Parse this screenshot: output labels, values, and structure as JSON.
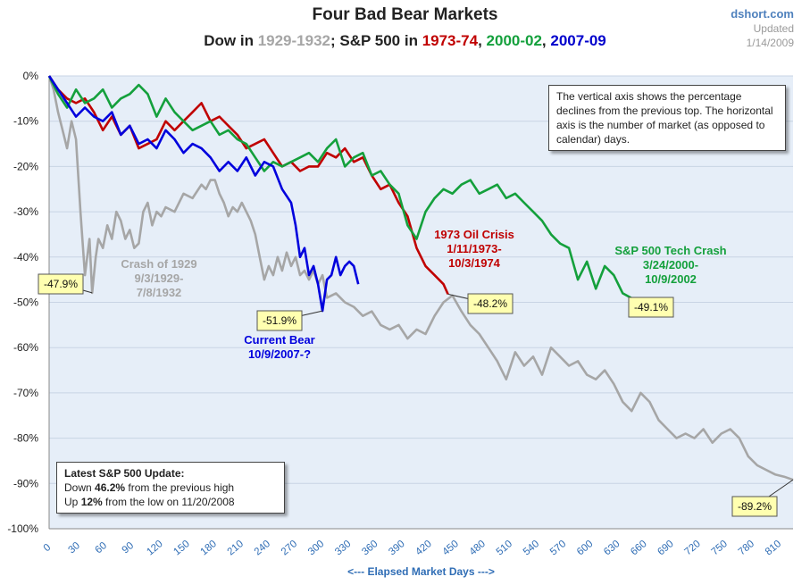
{
  "header": {
    "title": "Four Bad Bear Markets",
    "subtitle_prefix": "Dow in ",
    "subtitle_dow_years": "1929-1932",
    "subtitle_mid": "; S&P 500 in ",
    "subtitle_1973": "1973-74",
    "subtitle_sep1": ", ",
    "subtitle_2000": "2000-02",
    "subtitle_sep2": ", ",
    "subtitle_2007": "2007-09"
  },
  "brand": {
    "site": "dshort.com",
    "updated_label": "Updated",
    "date": "1/14/2009"
  },
  "info_box": {
    "text": "The vertical axis shows the percentage declines from the previous top. The horizontal axis is the number of market (as opposed to calendar) days."
  },
  "update_box": {
    "title": "Latest S&P 500 Update:",
    "line1_pre": "Down ",
    "line1_val": "46.2%",
    "line1_post": " from the previous high",
    "line2_pre": "Up ",
    "line2_val": "12%",
    "line2_post": " from the low on 11/20/2008"
  },
  "annotations": {
    "crash1929": [
      "Crash of 1929",
      "9/3/1929-",
      "7/8/1932"
    ],
    "oil1973": [
      "1973 Oil Crisis",
      "1/11/1973-",
      "10/3/1974"
    ],
    "tech2000": [
      "S&P 500 Tech Crash",
      "3/24/2000-",
      "10/9/2002"
    ],
    "current": [
      "Current Bear",
      "10/9/2007-?"
    ]
  },
  "callouts": {
    "c1929_low": "-47.9%",
    "c1929_end": "-89.2%",
    "c1973": "-48.2%",
    "c2000": "-49.1%",
    "c2007": "-51.9%"
  },
  "colors": {
    "dow1929": "#a6a6a6",
    "sp1973": "#c00000",
    "sp2000": "#14a03c",
    "sp2007": "#0000dd",
    "plot_bg": "#e6eef8",
    "callout_bg": "#ffffb0"
  },
  "chart_data": {
    "type": "line",
    "title": "Four Bad Bear Markets",
    "xlabel": "<--- Elapsed Market Days --->",
    "ylabel": "",
    "xlim": [
      0,
      830
    ],
    "ylim": [
      -100,
      0
    ],
    "x_ticks": [
      0,
      30,
      60,
      90,
      120,
      150,
      180,
      210,
      240,
      270,
      300,
      330,
      360,
      390,
      420,
      450,
      480,
      510,
      540,
      570,
      600,
      630,
      660,
      690,
      720,
      750,
      780,
      810
    ],
    "y_ticks": [
      0,
      -10,
      -20,
      -30,
      -40,
      -50,
      -60,
      -70,
      -80,
      -90,
      -100
    ],
    "y_tick_labels": [
      "0%",
      "-10%",
      "-20%",
      "-30%",
      "-40%",
      "-50%",
      "-60%",
      "-70%",
      "-80%",
      "-90%",
      "-100%"
    ],
    "grid": "horizontal",
    "series": [
      {
        "name": "Crash of 1929",
        "color": "#a6a6a6",
        "x": [
          0,
          5,
          10,
          15,
          20,
          25,
          30,
          35,
          40,
          45,
          48,
          52,
          55,
          60,
          65,
          70,
          75,
          80,
          85,
          90,
          95,
          100,
          105,
          110,
          115,
          120,
          125,
          130,
          140,
          150,
          160,
          170,
          175,
          180,
          185,
          190,
          195,
          200,
          205,
          210,
          215,
          220,
          225,
          230,
          235,
          240,
          245,
          250,
          255,
          260,
          265,
          270,
          275,
          280,
          285,
          290,
          295,
          300,
          305,
          310,
          320,
          330,
          340,
          350,
          360,
          370,
          380,
          390,
          400,
          410,
          420,
          430,
          440,
          450,
          460,
          470,
          480,
          490,
          500,
          510,
          520,
          530,
          540,
          550,
          560,
          570,
          580,
          590,
          600,
          610,
          620,
          630,
          640,
          650,
          660,
          670,
          680,
          690,
          700,
          710,
          720,
          730,
          740,
          750,
          760,
          770,
          780,
          790,
          800,
          810,
          820,
          830
        ],
        "y": [
          0,
          -3,
          -8,
          -12,
          -16,
          -10,
          -14,
          -30,
          -44,
          -36,
          -47.9,
          -40,
          -36,
          -38,
          -33,
          -36,
          -30,
          -32,
          -36,
          -34,
          -38,
          -37,
          -30,
          -28,
          -33,
          -30,
          -31,
          -29,
          -30,
          -26,
          -27,
          -24,
          -25,
          -23,
          -23,
          -26,
          -28,
          -31,
          -29,
          -30,
          -28,
          -30,
          -32,
          -35,
          -40,
          -45,
          -42,
          -44,
          -40,
          -43,
          -39,
          -42,
          -40,
          -44,
          -43,
          -45,
          -43,
          -46,
          -44,
          -49,
          -48,
          -50,
          -51,
          -53,
          -52,
          -55,
          -56,
          -55,
          -58,
          -56,
          -57,
          -53,
          -50,
          -48.5,
          -52,
          -55,
          -57,
          -60,
          -63,
          -67,
          -61,
          -64,
          -62,
          -66,
          -60,
          -62,
          -64,
          -63,
          -66,
          -67,
          -65,
          -68,
          -72,
          -74,
          -70,
          -72,
          -76,
          -78,
          -80,
          -79,
          -80,
          -78,
          -81,
          -79,
          -78,
          -80,
          -84,
          -86,
          -87,
          -88,
          -88.5,
          -89.2
        ],
        "low_value": -47.9,
        "final_value": -89.2
      },
      {
        "name": "1973 Oil Crisis",
        "color": "#c00000",
        "x": [
          0,
          10,
          20,
          30,
          40,
          50,
          60,
          70,
          80,
          90,
          100,
          110,
          120,
          130,
          140,
          150,
          160,
          170,
          180,
          190,
          200,
          210,
          220,
          230,
          240,
          250,
          260,
          270,
          280,
          290,
          300,
          310,
          320,
          330,
          340,
          350,
          360,
          370,
          380,
          390,
          400,
          410,
          420,
          430,
          440,
          445
        ],
        "y": [
          0,
          -3,
          -5,
          -6,
          -5,
          -8,
          -12,
          -9,
          -13,
          -11,
          -16,
          -15,
          -14,
          -10,
          -12,
          -10,
          -8,
          -6,
          -10,
          -9,
          -11,
          -13,
          -16,
          -15,
          -14,
          -17,
          -20,
          -19,
          -21,
          -20,
          -20,
          -17,
          -18,
          -16,
          -19,
          -18,
          -22,
          -25,
          -24,
          -28,
          -31,
          -38,
          -42,
          -44,
          -46,
          -48.2
        ],
        "final_value": -48.2
      },
      {
        "name": "S&P 500 Tech Crash",
        "color": "#14a03c",
        "x": [
          0,
          10,
          20,
          30,
          40,
          50,
          60,
          70,
          80,
          90,
          100,
          110,
          120,
          130,
          140,
          150,
          160,
          170,
          180,
          190,
          200,
          210,
          220,
          230,
          240,
          250,
          260,
          270,
          280,
          290,
          300,
          310,
          320,
          330,
          340,
          350,
          360,
          370,
          380,
          390,
          400,
          410,
          420,
          430,
          440,
          450,
          460,
          470,
          480,
          490,
          500,
          510,
          520,
          530,
          540,
          550,
          560,
          570,
          580,
          590,
          600,
          610,
          620,
          630,
          640,
          650
        ],
        "y": [
          0,
          -4,
          -7,
          -3,
          -6,
          -5,
          -3,
          -7,
          -5,
          -4,
          -2,
          -4,
          -9,
          -5,
          -8,
          -10,
          -12,
          -11,
          -10,
          -13,
          -12,
          -14,
          -15,
          -18,
          -21,
          -19,
          -20,
          -19,
          -18,
          -17,
          -19,
          -16,
          -14,
          -20,
          -18,
          -17,
          -22,
          -21,
          -24,
          -26,
          -33,
          -36,
          -30,
          -27,
          -25,
          -26,
          -24,
          -23,
          -26,
          -25,
          -24,
          -27,
          -26,
          -28,
          -30,
          -32,
          -35,
          -37,
          -38,
          -45,
          -41,
          -47,
          -42,
          -44,
          -48,
          -49.1
        ],
        "final_value": -49.1
      },
      {
        "name": "Current Bear",
        "color": "#0000dd",
        "x": [
          0,
          10,
          20,
          30,
          40,
          50,
          60,
          70,
          80,
          90,
          100,
          110,
          120,
          130,
          140,
          150,
          160,
          170,
          180,
          190,
          200,
          210,
          220,
          230,
          240,
          250,
          260,
          270,
          275,
          280,
          285,
          290,
          295,
          300,
          305,
          310,
          315,
          320,
          325,
          330,
          335,
          340,
          345
        ],
        "y": [
          0,
          -3,
          -6,
          -9,
          -7,
          -9,
          -10,
          -8,
          -13,
          -11,
          -15,
          -14,
          -16,
          -12,
          -14,
          -17,
          -15,
          -16,
          -18,
          -21,
          -19,
          -21,
          -18,
          -22,
          -19,
          -20,
          -25,
          -28,
          -33,
          -40,
          -38,
          -44,
          -42,
          -46,
          -51.9,
          -45,
          -44,
          -40,
          -44,
          -42,
          -41,
          -42,
          -46
        ],
        "low_value": -51.9,
        "final_value": -46.2
      }
    ]
  }
}
